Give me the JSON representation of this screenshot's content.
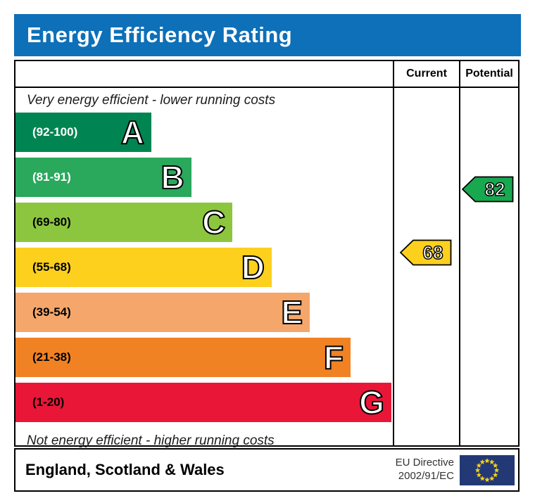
{
  "title": "Energy Efficiency Rating",
  "table": {
    "current_header": "Current",
    "potential_header": "Potential",
    "top_note": "Very energy efficient - lower running costs",
    "bottom_note": "Not energy efficient - higher running costs"
  },
  "footer": {
    "region": "England, Scotland & Wales",
    "directive_line1": "EU Directive",
    "directive_line2": "2002/91/EC",
    "eu_flag_icon": "eu-flag-icon"
  },
  "colors": {
    "header_bg": "#0d70b8",
    "border": "#000000",
    "current_arrow": "#fdd01e",
    "potential_arrow": "#18a850",
    "eu_flag_bg": "#233976",
    "eu_star": "#f7d117"
  },
  "chart_data": {
    "type": "bar",
    "title": "Energy Efficiency Rating",
    "categories": [
      "A",
      "B",
      "C",
      "D",
      "E",
      "F",
      "G"
    ],
    "bands": [
      {
        "letter": "A",
        "range": "(92-100)",
        "min": 92,
        "max": 100,
        "color": "#008552",
        "text_color": "#ffffff",
        "width_pct": 36.0
      },
      {
        "letter": "B",
        "range": "(81-91)",
        "min": 81,
        "max": 91,
        "color": "#2aa85c",
        "text_color": "#ffffff",
        "width_pct": 46.6
      },
      {
        "letter": "C",
        "range": "(69-80)",
        "min": 69,
        "max": 80,
        "color": "#8cc63e",
        "text_color": "#000000",
        "width_pct": 57.5
      },
      {
        "letter": "D",
        "range": "(55-68)",
        "min": 55,
        "max": 68,
        "color": "#fdd01e",
        "text_color": "#000000",
        "width_pct": 67.9
      },
      {
        "letter": "E",
        "range": "(39-54)",
        "min": 39,
        "max": 54,
        "color": "#f5a76b",
        "text_color": "#000000",
        "width_pct": 78.0
      },
      {
        "letter": "F",
        "range": "(21-38)",
        "min": 21,
        "max": 38,
        "color": "#f08224",
        "text_color": "#000000",
        "width_pct": 88.8
      },
      {
        "letter": "G",
        "range": "(1-20)",
        "min": 1,
        "max": 20,
        "color": "#e91638",
        "text_color": "#000000",
        "width_pct": 99.6
      }
    ],
    "current": {
      "label": "Current",
      "value": 68,
      "band": "D"
    },
    "potential": {
      "label": "Potential",
      "value": 82,
      "band": "B"
    },
    "legend_position": "none",
    "grid": false
  }
}
